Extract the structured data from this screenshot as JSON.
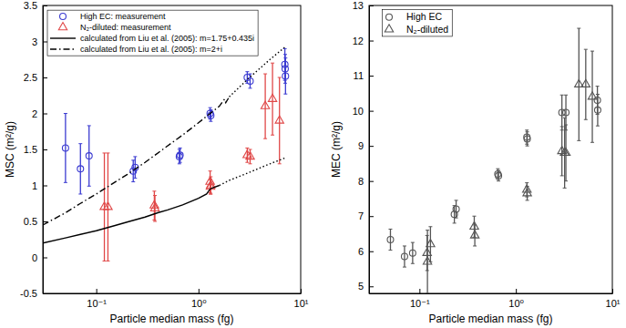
{
  "chart_data": [
    {
      "type": "scatter",
      "x_label": "Particle median mass (fg)",
      "y_label": "MSC (m²/g)",
      "log": "x",
      "xlim": [
        0.03,
        10
      ],
      "ylim": [
        -0.5,
        3.5
      ],
      "xticks": [
        {
          "value": 0.1,
          "label": "10⁻¹"
        },
        {
          "value": 1,
          "label": "10⁰"
        },
        {
          "value": 10,
          "label": "10¹"
        }
      ],
      "yticks": [
        -0.5,
        0,
        0.5,
        1,
        1.5,
        2,
        2.5,
        3,
        3.5
      ],
      "legend": "upper left",
      "series": [
        {
          "name": "High EC: measurement",
          "type": "scatter",
          "marker": "circle",
          "color": "#3b3bd1",
          "x": [
            0.05,
            0.07,
            0.085,
            0.23,
            0.24,
            0.65,
            0.66,
            1.3,
            1.32,
            3.0,
            3.2,
            7.0,
            7.1,
            7.05
          ],
          "values": [
            1.52,
            1.23,
            1.41,
            1.2,
            1.25,
            1.4,
            1.42,
            2.0,
            1.97,
            2.5,
            2.45,
            2.68,
            2.52,
            2.62
          ],
          "errors": [
            0.48,
            0.35,
            0.42,
            0.15,
            0.15,
            0.1,
            0.1,
            0.08,
            0.08,
            0.08,
            0.1,
            0.22,
            0.25,
            0.2
          ]
        },
        {
          "name": "N₂-diluted: measurement",
          "type": "scatter",
          "marker": "triangle",
          "color": "#e04848",
          "x": [
            0.12,
            0.13,
            0.37,
            0.375,
            1.3,
            1.32,
            1.31,
            3.0,
            3.2,
            4.5,
            5.3,
            6.2
          ],
          "values": [
            0.7,
            0.7,
            0.72,
            0.68,
            1.05,
            1.0,
            0.98,
            1.42,
            1.4,
            2.1,
            2.2,
            1.9
          ],
          "errors": [
            0.75,
            0.75,
            0.2,
            0.18,
            0.15,
            0.12,
            0.1,
            0.1,
            0.1,
            0.45,
            0.5,
            0.6
          ]
        },
        {
          "name": "calculated from Liu et al. (2005): m=1.75+0.435i",
          "type": "line",
          "line_style": "solid",
          "color": "#000000",
          "x": [
            0.03,
            0.05,
            0.07,
            0.1,
            0.15,
            0.2,
            0.3,
            0.4,
            0.5,
            0.7,
            1.0,
            1.2,
            1.3,
            1.4,
            1.6
          ],
          "values": [
            0.2,
            0.27,
            0.32,
            0.37,
            0.44,
            0.49,
            0.56,
            0.62,
            0.66,
            0.73,
            0.82,
            0.88,
            0.95,
            0.97,
            1.0
          ]
        },
        {
          "name": "calculated from Liu et al. (2005): m=2+i",
          "type": "line",
          "line_style": "dashdot",
          "color": "#000000",
          "x": [
            0.03,
            0.05,
            0.07,
            0.1,
            0.15,
            0.2,
            0.3,
            0.5,
            0.7,
            1.0,
            1.3,
            1.6,
            1.8,
            1.85,
            2.0
          ],
          "values": [
            0.45,
            0.62,
            0.75,
            0.88,
            1.04,
            1.15,
            1.32,
            1.55,
            1.7,
            1.87,
            2.0,
            2.1,
            2.2,
            2.15,
            2.23
          ]
        },
        {
          "type": "line",
          "line_style": "dotted",
          "color": "#000000",
          "x": [
            1.6,
            2.0,
            3.0,
            5.0,
            7.0
          ],
          "values": [
            1.0,
            1.07,
            1.17,
            1.3,
            1.38
          ]
        },
        {
          "type": "line",
          "line_style": "dotted",
          "color": "#000000",
          "x": [
            2.0,
            3.0,
            5.0,
            7.0
          ],
          "values": [
            2.23,
            2.47,
            2.75,
            2.92
          ]
        }
      ]
    },
    {
      "type": "scatter",
      "x_label": "Particle median mass (fg)",
      "y_label": "MEC (m²/g)",
      "log": "x",
      "xlim": [
        0.03,
        10
      ],
      "ylim": [
        4.8,
        13
      ],
      "xticks": [
        {
          "value": 0.1,
          "label": "10⁻¹"
        },
        {
          "value": 1,
          "label": "10⁰"
        },
        {
          "value": 10,
          "label": "10¹"
        }
      ],
      "yticks": [
        5,
        6,
        7,
        8,
        9,
        10,
        11,
        12,
        13
      ],
      "legend": "upper left",
      "series": [
        {
          "name": "High EC",
          "type": "scatter",
          "marker": "circle",
          "color": "#555555",
          "x": [
            0.05,
            0.07,
            0.085,
            0.23,
            0.24,
            0.65,
            0.66,
            1.3,
            1.31,
            3.0,
            3.3,
            7.0,
            7.05
          ],
          "values": [
            6.33,
            5.85,
            5.95,
            7.05,
            7.2,
            8.2,
            8.15,
            9.25,
            9.2,
            9.95,
            9.95,
            10.3,
            10.02
          ],
          "errors": [
            0.3,
            0.3,
            0.3,
            0.25,
            0.25,
            0.15,
            0.15,
            0.2,
            0.2,
            0.5,
            0.5,
            0.4,
            0.45
          ]
        },
        {
          "name": "N₂-diluted",
          "type": "scatter",
          "marker": "triangle",
          "color": "#555555",
          "x": [
            0.12,
            0.121,
            0.13,
            0.37,
            0.375,
            1.3,
            1.31,
            3.0,
            3.2,
            3.3,
            4.5,
            5.3,
            6.2
          ],
          "values": [
            5.95,
            5.7,
            6.2,
            6.7,
            6.45,
            7.75,
            7.65,
            8.85,
            8.8,
            8.8,
            10.75,
            10.75,
            10.4
          ],
          "errors": [
            0.5,
            0.9,
            0.5,
            0.3,
            0.3,
            0.2,
            0.2,
            0.7,
            1.0,
            0.8,
            1.6,
            1.0,
            1.3
          ]
        }
      ]
    }
  ]
}
